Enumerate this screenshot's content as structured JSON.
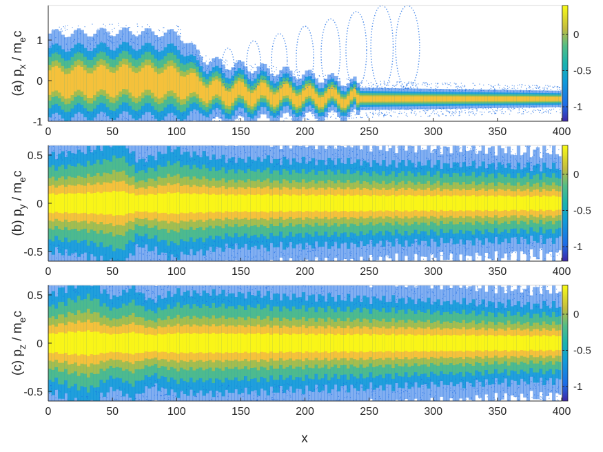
{
  "chart_data": [
    {
      "type": "heatmap",
      "panel": "(a)",
      "ylabel": {
        "prefix": "(a) p",
        "sub1": "x",
        "mid": " / m",
        "sub2": "e",
        "suffix": "c"
      },
      "xlabel": "",
      "xlim": [
        0,
        400
      ],
      "ylim": [
        -1,
        1.85
      ],
      "xticks": [
        0,
        50,
        100,
        150,
        200,
        250,
        300,
        350,
        400
      ],
      "yticks": [
        -1,
        0,
        1
      ],
      "colorbar": {
        "clim": [
          -1.2,
          0.4
        ],
        "ticks": [
          0,
          -0.5,
          -1
        ],
        "tick_labels": [
          "0",
          "-0.5",
          "-1"
        ],
        "scale": "log10"
      },
      "core": [
        [
          0,
          -0.05
        ],
        [
          60,
          0.0
        ],
        [
          100,
          -0.05
        ],
        [
          130,
          -0.3
        ],
        [
          180,
          -0.35
        ],
        [
          240,
          -0.45
        ],
        [
          400,
          -0.45
        ]
      ],
      "halfwidth": [
        [
          0,
          0.55
        ],
        [
          100,
          0.55
        ],
        [
          120,
          0.35
        ],
        [
          240,
          0.18
        ],
        [
          400,
          0.13
        ]
      ],
      "beams": [
        140,
        160,
        180,
        200,
        220,
        240,
        260,
        280
      ]
    },
    {
      "type": "heatmap",
      "panel": "(b)",
      "ylabel": {
        "prefix": "(b) p",
        "sub1": "y",
        "mid": " / m",
        "sub2": "e",
        "suffix": "c"
      },
      "xlabel": "",
      "xlim": [
        0,
        400
      ],
      "ylim": [
        -0.6,
        0.6
      ],
      "xticks": [
        0,
        50,
        100,
        150,
        200,
        250,
        300,
        350,
        400
      ],
      "yticks": [
        -0.5,
        0,
        0.5
      ],
      "colorbar": {
        "clim": [
          -1.2,
          0.4
        ],
        "ticks": [
          0,
          -0.5,
          -1
        ],
        "tick_labels": [
          "0",
          "-0.5",
          "-1"
        ],
        "scale": "log10"
      },
      "core": [
        [
          0,
          0.0
        ],
        [
          400,
          0.0
        ]
      ],
      "halfwidth": [
        [
          0,
          0.32
        ],
        [
          30,
          0.35
        ],
        [
          55,
          0.42
        ],
        [
          70,
          0.28
        ],
        [
          95,
          0.36
        ],
        [
          130,
          0.3
        ],
        [
          400,
          0.24
        ]
      ]
    },
    {
      "type": "heatmap",
      "panel": "(c)",
      "ylabel": {
        "prefix": "(c) p",
        "sub1": "z",
        "mid": " / m",
        "sub2": "e",
        "suffix": "c"
      },
      "xlabel": "x",
      "xlim": [
        0,
        400
      ],
      "ylim": [
        -0.6,
        0.6
      ],
      "xticks": [
        0,
        50,
        100,
        150,
        200,
        250,
        300,
        350,
        400
      ],
      "yticks": [
        -0.5,
        0,
        0.5
      ],
      "colorbar": {
        "clim": [
          -1.2,
          0.4
        ],
        "ticks": [
          0,
          -0.5,
          -1
        ],
        "tick_labels": [
          "0",
          "-0.5",
          "-1"
        ],
        "scale": "log10"
      },
      "core": [
        [
          0,
          0.0
        ],
        [
          400,
          0.0
        ]
      ],
      "halfwidth": [
        [
          0,
          0.33
        ],
        [
          30,
          0.42
        ],
        [
          50,
          0.3
        ],
        [
          65,
          0.38
        ],
        [
          78,
          0.28
        ],
        [
          100,
          0.34
        ],
        [
          400,
          0.25
        ]
      ]
    }
  ],
  "colormap": [
    "#ffffff",
    "#3e26a8",
    "#1c6ee6",
    "#109cd8",
    "#1ab3ae",
    "#52bd86",
    "#a9bd4c",
    "#f5c13b",
    "#f9fb15"
  ]
}
